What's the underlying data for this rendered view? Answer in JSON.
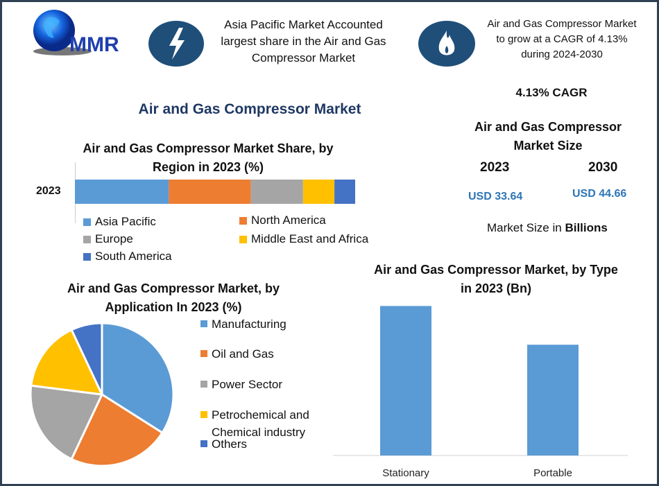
{
  "logo": {
    "text": "MMR"
  },
  "header": {
    "fact1": "Asia Pacific Market Accounted largest share in the Air and Gas Compressor Market",
    "fact1_icon": "lightning-icon",
    "fact2": "Air and Gas Compressor Market to grow at a CAGR of 4.13% during 2024-2030",
    "fact2_icon": "flame-icon"
  },
  "main_title": "Air and Gas Compressor Market",
  "market": {
    "cagr": "4.13% CAGR",
    "size_title": "Air and Gas Compressor Market Size",
    "year1": "2023",
    "year2": "2030",
    "value1": "USD 33.64",
    "value2": "USD 44.66",
    "unit_prefix": "Market Size in ",
    "unit_bold": "Billions"
  },
  "colors": {
    "blue": "#5b9bd5",
    "orange": "#ed7d31",
    "gray": "#a5a5a5",
    "yellow": "#ffc000",
    "darkblue": "#4472c4",
    "accent": "#1f4e79",
    "value_text": "#2e75b6"
  },
  "chart_data": [
    {
      "type": "bar",
      "orientation": "horizontal-stacked",
      "title": "Air and Gas Compressor Market Share, by Region in 2023 (%)",
      "categories": [
        "2023"
      ],
      "series": [
        {
          "name": "Asia Pacific",
          "values": [
            33.5
          ],
          "color": "#5b9bd5"
        },
        {
          "name": "North America",
          "values": [
            29.3
          ],
          "color": "#ed7d31"
        },
        {
          "name": "Europe",
          "values": [
            18.6
          ],
          "color": "#a5a5a5"
        },
        {
          "name": "Middle East and Africa",
          "values": [
            11.2
          ],
          "color": "#ffc000"
        },
        {
          "name": "South America",
          "values": [
            7.4
          ],
          "color": "#4472c4"
        }
      ],
      "legend": "bottom"
    },
    {
      "type": "pie",
      "title": "Air and Gas Compressor Market, by Application In 2023 (%)",
      "slices": [
        {
          "label": "Manufacturing",
          "value": 34,
          "color": "#5b9bd5"
        },
        {
          "label": "Oil and Gas",
          "value": 23,
          "color": "#ed7d31"
        },
        {
          "label": "Power Sector",
          "value": 20,
          "color": "#a5a5a5"
        },
        {
          "label": "Petrochemical and Chemical industry",
          "value": 16,
          "color": "#ffc000"
        },
        {
          "label": "Others",
          "value": 7,
          "color": "#4472c4"
        }
      ],
      "legend": "right"
    },
    {
      "type": "bar",
      "title": "Air and Gas Compressor Market, by Type in 2023 (Bn)",
      "categories": [
        "Stationary",
        "Portable"
      ],
      "values": [
        19.3,
        14.3
      ],
      "color": "#5b9bd5",
      "ylim": [
        0,
        23
      ]
    }
  ]
}
